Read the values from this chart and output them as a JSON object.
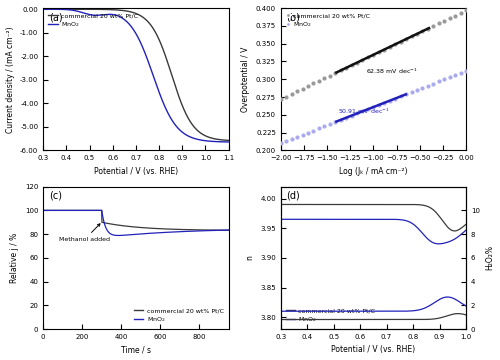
{
  "panel_a": {
    "xlim": [
      0.3,
      1.1
    ],
    "ylim": [
      -6.0,
      0.05
    ],
    "xlabel": "Potential / V (vs. RHE)",
    "ylabel": "Current density / (mA cm⁻²)",
    "ptc_color": "#3a3a3a",
    "mno2_color": "#2222bb",
    "legend": [
      "commercial 20 wt% Pt/C",
      "MnO₂"
    ],
    "xticks": [
      0.3,
      0.4,
      0.5,
      0.6,
      0.7,
      0.8,
      0.9,
      1.0,
      1.1
    ],
    "yticks": [
      0,
      -1,
      -2,
      -3,
      -4,
      -5,
      -6
    ],
    "yticklabels": [
      "0.00",
      "-1.00",
      "-2.00",
      "-3.00",
      "-4.00",
      "-5.00",
      "-6.00"
    ]
  },
  "panel_b": {
    "xlim": [
      -2.0,
      0.0
    ],
    "ylim": [
      0.2,
      0.4
    ],
    "xlabel": "Log (Jₖ / mA cm⁻²)",
    "ylabel": "Overpotential / V",
    "ptc_dot_color": "#999999",
    "mno2_dot_color": "#aaaaee",
    "ptc_line_color": "#111111",
    "mno2_line_color": "#2222bb",
    "ptc_intercept": 0.272,
    "mno2_intercept": 0.21,
    "ptc_slope": 0.06238,
    "mno2_slope": 0.05091,
    "ptc_fit_range": [
      -1.4,
      -0.4
    ],
    "mno2_fit_range": [
      -1.4,
      -0.65
    ],
    "legend": [
      "commercial 20 wt% Pt/C",
      "MnO₂"
    ]
  },
  "panel_c": {
    "xlim": [
      0,
      950
    ],
    "ylim": [
      0,
      120
    ],
    "xlabel": "Time / s",
    "ylabel": "Relative j / %",
    "ptc_color": "#3a3a3a",
    "mno2_color": "#2222bb",
    "legend": [
      "commercial 20 wt% Pt/C",
      "MnO₂"
    ],
    "methanol_time": 300,
    "yticks": [
      0,
      20,
      40,
      60,
      80,
      100,
      120
    ]
  },
  "panel_d": {
    "xlim": [
      0.3,
      1.0
    ],
    "ylim_n": [
      3.78,
      4.02
    ],
    "ylim_h2o2": [
      0.0,
      12.0
    ],
    "xlabel": "Potential / V (vs. RHE)",
    "ylabel_n": "n",
    "ylabel_h2o2": "H₂O₂%",
    "ptc_color": "#3a3a3a",
    "mno2_color": "#2222bb",
    "legend": [
      "commercial 20 wt% Pt/C",
      "MnO₂"
    ],
    "yticks_n": [
      3.8,
      3.85,
      3.9,
      3.95,
      4.0
    ],
    "yticks_h2o2": [
      0.0,
      2.0,
      4.0,
      6.0,
      8.0,
      10.0
    ]
  },
  "bg_color": "#ffffff"
}
